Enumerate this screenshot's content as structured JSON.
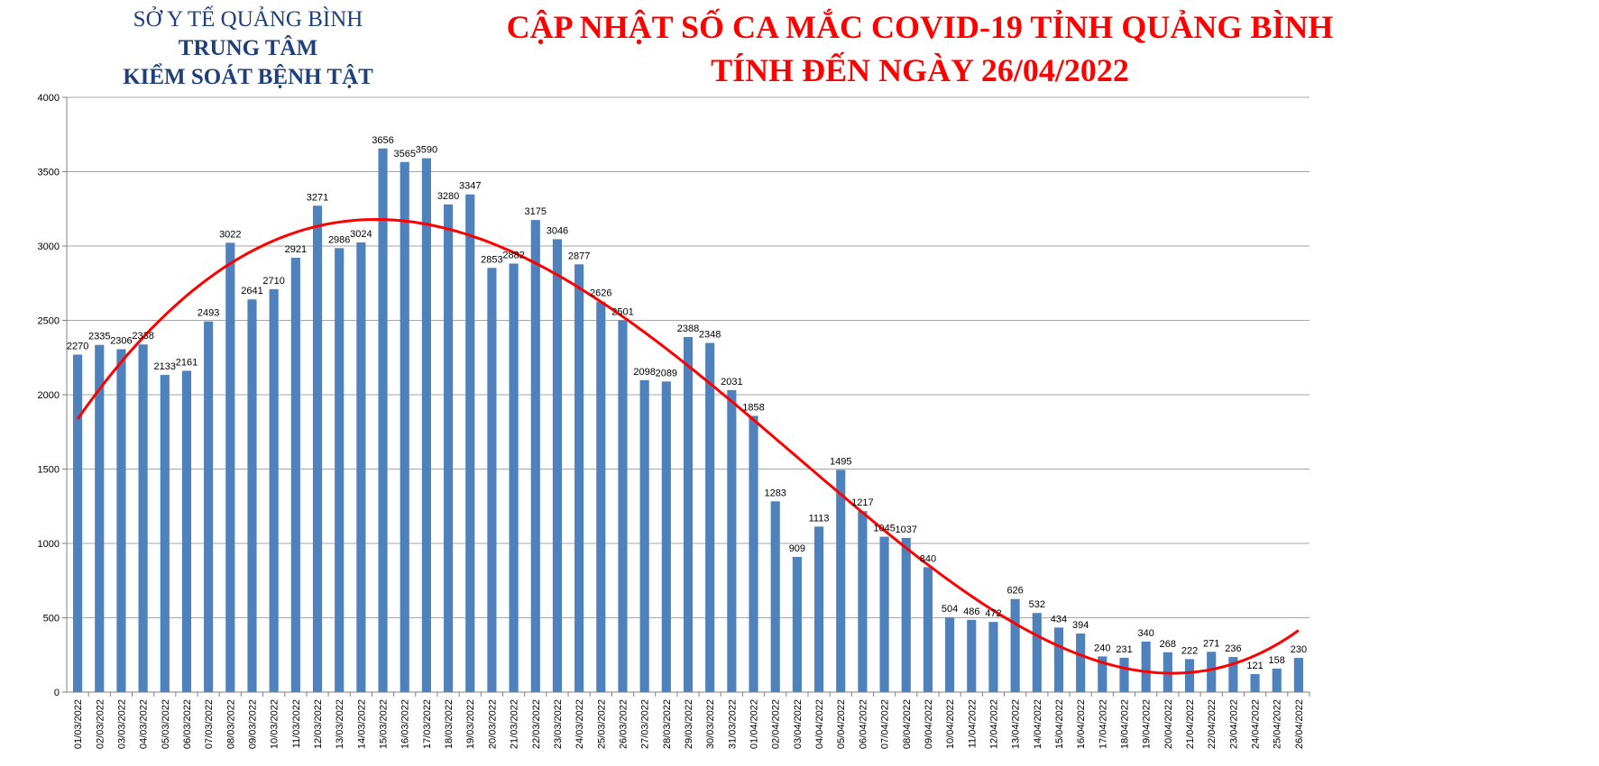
{
  "header": {
    "org_line1": "SỞ Y TẾ QUẢNG BÌNH",
    "org_line2": "TRUNG TÂM",
    "org_line3": "KIỂM SOÁT BỆNH TẬT",
    "title_line1": "CẬP NHẬT SỐ CA MẮC COVID-19 TỈNH QUẢNG BÌNH",
    "title_line2": "TÍNH ĐẾN NGÀY 26/04/2022"
  },
  "chart_data": {
    "type": "bar",
    "title": "CẬP NHẬT SỐ CA MẮC COVID-19 TỈNH QUẢNG BÌNH TÍNH ĐẾN NGÀY 26/04/2022",
    "xlabel": "",
    "ylabel": "",
    "ylim": [
      0,
      4000
    ],
    "yticks": [
      0,
      500,
      1000,
      1500,
      2000,
      2500,
      3000,
      3500,
      4000
    ],
    "grid": true,
    "bar_color": "#4f81bd",
    "trendline_color": "#ff0000",
    "trendline": "polynomial",
    "categories": [
      "01/03/2022",
      "02/03/2022",
      "03/03/2022",
      "04/03/2022",
      "05/03/2022",
      "06/03/2022",
      "07/03/2022",
      "08/03/2022",
      "09/03/2022",
      "10/03/2022",
      "11/03/2022",
      "12/03/2022",
      "13/03/2022",
      "14/03/2022",
      "15/03/2022",
      "16/03/2022",
      "17/03/2022",
      "18/03/2022",
      "19/03/2022",
      "20/03/2022",
      "21/03/2022",
      "22/03/2022",
      "23/03/2022",
      "24/03/2022",
      "25/03/2022",
      "26/03/2022",
      "27/03/2022",
      "28/03/2022",
      "29/03/2022",
      "30/03/2022",
      "31/03/2022",
      "01/04/2022",
      "02/04/2022",
      "03/04/2022",
      "04/04/2022",
      "05/04/2022",
      "06/04/2022",
      "07/04/2022",
      "08/04/2022",
      "09/04/2022",
      "10/04/2022",
      "11/04/2022",
      "12/04/2022",
      "13/04/2022",
      "14/04/2022",
      "15/04/2022",
      "16/04/2022",
      "17/04/2022",
      "18/04/2022",
      "19/04/2022",
      "20/04/2022",
      "21/04/2022",
      "22/04/2022",
      "23/04/2022",
      "24/04/2022",
      "25/04/2022",
      "26/04/2022"
    ],
    "values": [
      2270,
      2335,
      2306,
      2338,
      2133,
      2161,
      2493,
      3022,
      2641,
      2710,
      2921,
      3271,
      2986,
      3024,
      3656,
      3565,
      3590,
      3280,
      3347,
      2853,
      2882,
      3175,
      3046,
      2877,
      2626,
      2501,
      2098,
      2089,
      2388,
      2348,
      2031,
      1858,
      1283,
      909,
      1113,
      1495,
      1217,
      1045,
      1037,
      840,
      504,
      486,
      472,
      626,
      532,
      434,
      394,
      240,
      231,
      340,
      268,
      222,
      271,
      236,
      121,
      158,
      230
    ]
  }
}
